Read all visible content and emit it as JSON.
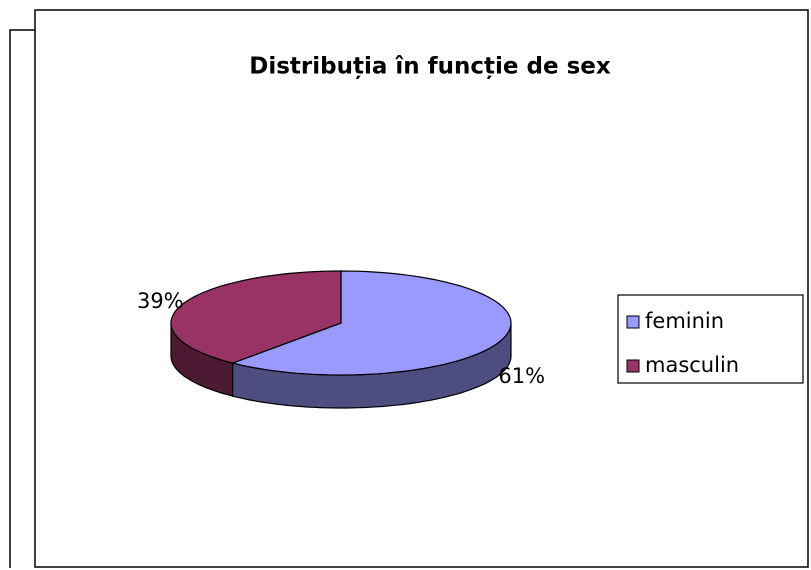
{
  "chart_data": {
    "type": "pie",
    "title": "Distribuția în funcție de sex",
    "categories": [
      "feminin",
      "masculin"
    ],
    "values": [
      61,
      39
    ],
    "value_labels": [
      "61%",
      "39%"
    ],
    "colors": [
      "#9999ff",
      "#993366"
    ],
    "legend": "right"
  }
}
